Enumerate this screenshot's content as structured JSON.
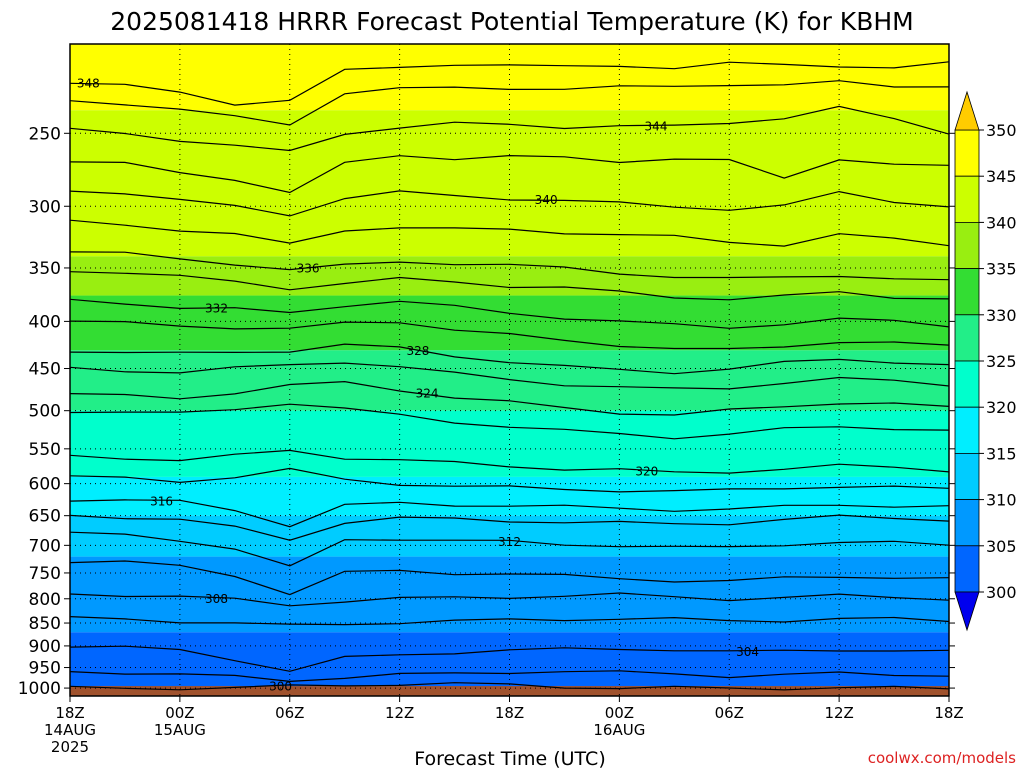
{
  "chart_data": {
    "type": "filled-contour",
    "title": "2025081418 HRRR Forecast Potential Temperature (K) for KBHM",
    "xlabel": "Forecast Time (UTC)",
    "ylabel": "",
    "credit": "coolwx.com/models",
    "x_ticks": [
      {
        "hour": 0,
        "lines": [
          "18Z",
          "14AUG",
          "2025"
        ]
      },
      {
        "hour": 6,
        "lines": [
          "00Z",
          "15AUG"
        ]
      },
      {
        "hour": 12,
        "lines": [
          "06Z"
        ]
      },
      {
        "hour": 18,
        "lines": [
          "12Z"
        ]
      },
      {
        "hour": 24,
        "lines": [
          "18Z"
        ]
      },
      {
        "hour": 30,
        "lines": [
          "00Z",
          "16AUG"
        ]
      },
      {
        "hour": 36,
        "lines": [
          "06Z"
        ]
      },
      {
        "hour": 42,
        "lines": [
          "12Z"
        ]
      },
      {
        "hour": 48,
        "lines": [
          "18Z"
        ]
      }
    ],
    "xlim": [
      0,
      48
    ],
    "y_ticks": [
      250,
      300,
      350,
      400,
      450,
      500,
      550,
      600,
      650,
      700,
      750,
      800,
      850,
      900,
      950,
      1000
    ],
    "ylim": [
      1020,
      200
    ],
    "y_scale": "log-pressure",
    "grid": true,
    "colorbar": {
      "labels": [
        350,
        345,
        340,
        335,
        330,
        325,
        320,
        315,
        310,
        305,
        300
      ],
      "bands": [
        {
          "min": 345,
          "max": 350,
          "color": "#ffff00"
        },
        {
          "min": 340,
          "max": 345,
          "color": "#ccff00"
        },
        {
          "min": 335,
          "max": 340,
          "color": "#99ee11"
        },
        {
          "min": 330,
          "max": 335,
          "color": "#33dd33"
        },
        {
          "min": 325,
          "max": 330,
          "color": "#22ee88"
        },
        {
          "min": 320,
          "max": 325,
          "color": "#00ffcc"
        },
        {
          "min": 315,
          "max": 320,
          "color": "#00eeff"
        },
        {
          "min": 310,
          "max": 315,
          "color": "#00ccff"
        },
        {
          "min": 305,
          "max": 310,
          "color": "#0099ff"
        },
        {
          "min": 300,
          "max": 305,
          "color": "#0066ff"
        }
      ],
      "over_color": "#ffcc00",
      "under_color": "#0000ee"
    },
    "ground_color": "#a0522d",
    "bands": [
      {
        "top": 200,
        "bottom": 236,
        "color": "#ffff00"
      },
      {
        "top": 236,
        "bottom": 340,
        "color": "#ccff00"
      },
      {
        "top": 340,
        "bottom": 375,
        "color": "#99ee11"
      },
      {
        "top": 375,
        "bottom": 430,
        "color": "#33dd33"
      },
      {
        "top": 430,
        "bottom": 500,
        "color": "#22ee88"
      },
      {
        "top": 500,
        "bottom": 590,
        "color": "#00ffcc"
      },
      {
        "top": 590,
        "bottom": 650,
        "color": "#00eeff"
      },
      {
        "top": 650,
        "bottom": 720,
        "color": "#00ccff"
      },
      {
        "top": 720,
        "bottom": 870,
        "color": "#0099ff"
      },
      {
        "top": 870,
        "bottom": 1000,
        "color": "#0066ff"
      }
    ],
    "contours": [
      {
        "value": 348,
        "label": "348",
        "label_hour": 1.0,
        "pressure": [
          220,
          222,
          226,
          232,
          230,
          214,
          212,
          210,
          211,
          212,
          211,
          212,
          210,
          211,
          211,
          212,
          210
        ]
      },
      {
        "value": 346,
        "label": "",
        "pressure": [
          230,
          232,
          236,
          240,
          244,
          226,
          224,
          223,
          223,
          224,
          223,
          222,
          221,
          222,
          220,
          222,
          222
        ]
      },
      {
        "value": 344,
        "label": "344",
        "label_hour": 32.0,
        "pressure": [
          248,
          250,
          254,
          258,
          262,
          250,
          246,
          244,
          245,
          246,
          245,
          246,
          244,
          240,
          234,
          242,
          250
        ]
      },
      {
        "value": 342,
        "label": "",
        "pressure": [
          268,
          270,
          276,
          280,
          290,
          270,
          264,
          266,
          265,
          266,
          268,
          266,
          268,
          280,
          266,
          270,
          272
        ]
      },
      {
        "value": 340,
        "label": "340",
        "label_hour": 26.0,
        "pressure": [
          288,
          290,
          296,
          300,
          306,
          294,
          290,
          292,
          294,
          296,
          298,
          300,
          302,
          300,
          290,
          296,
          300
        ]
      },
      {
        "value": 338,
        "label": "",
        "pressure": [
          312,
          314,
          318,
          322,
          330,
          318,
          316,
          318,
          318,
          320,
          322,
          324,
          328,
          330,
          322,
          326,
          330
        ]
      },
      {
        "value": 336,
        "label": "336",
        "label_hour": 13.0,
        "pressure": [
          336,
          338,
          342,
          346,
          352,
          348,
          344,
          346,
          348,
          350,
          354,
          358,
          360,
          358,
          356,
          360,
          362
        ]
      },
      {
        "value": 334,
        "label": "",
        "pressure": [
          352,
          354,
          358,
          362,
          368,
          364,
          360,
          362,
          366,
          368,
          372,
          376,
          378,
          376,
          372,
          376,
          378
        ]
      },
      {
        "value": 332,
        "label": "332",
        "label_hour": 8.0,
        "pressure": [
          380,
          382,
          386,
          388,
          392,
          384,
          380,
          386,
          392,
          396,
          400,
          404,
          406,
          402,
          398,
          400,
          404
        ]
      },
      {
        "value": 330,
        "label": "",
        "pressure": [
          400,
          402,
          404,
          406,
          408,
          402,
          400,
          408,
          414,
          420,
          424,
          428,
          430,
          426,
          420,
          422,
          426
        ]
      },
      {
        "value": 328,
        "label": "328",
        "label_hour": 19.0,
        "pressure": [
          430,
          432,
          434,
          432,
          430,
          424,
          428,
          436,
          442,
          448,
          452,
          454,
          450,
          444,
          440,
          442,
          446
        ]
      },
      {
        "value": 326,
        "label": "",
        "pressure": [
          450,
          452,
          454,
          450,
          446,
          442,
          448,
          456,
          462,
          468,
          472,
          474,
          472,
          466,
          462,
          464,
          468
        ]
      },
      {
        "value": 324,
        "label": "324",
        "label_hour": 19.5,
        "pressure": [
          480,
          482,
          484,
          478,
          470,
          466,
          474,
          484,
          490,
          496,
          502,
          506,
          500,
          494,
          490,
          492,
          496
        ]
      },
      {
        "value": 322,
        "label": "",
        "pressure": [
          500,
          502,
          504,
          498,
          490,
          498,
          506,
          514,
          520,
          526,
          530,
          534,
          530,
          524,
          520,
          522,
          526
        ]
      },
      {
        "value": 320,
        "label": "320",
        "label_hour": 31.5,
        "pressure": [
          560,
          562,
          566,
          560,
          552,
          562,
          566,
          570,
          574,
          578,
          580,
          584,
          582,
          578,
          574,
          576,
          580
        ]
      },
      {
        "value": 318,
        "label": "",
        "pressure": [
          590,
          592,
          596,
          590,
          580,
          594,
          600,
          604,
          606,
          608,
          610,
          612,
          610,
          606,
          604,
          606,
          608
        ]
      },
      {
        "value": 316,
        "label": "316",
        "label_hour": 5.0,
        "pressure": [
          624,
          626,
          628,
          640,
          666,
          634,
          630,
          632,
          634,
          636,
          638,
          640,
          640,
          636,
          632,
          634,
          636
        ]
      },
      {
        "value": 314,
        "label": "",
        "pressure": [
          650,
          652,
          656,
          670,
          690,
          660,
          654,
          656,
          658,
          660,
          662,
          664,
          662,
          656,
          652,
          654,
          656
        ]
      },
      {
        "value": 312,
        "label": "312",
        "label_hour": 24.0,
        "pressure": [
          680,
          682,
          690,
          706,
          740,
          690,
          688,
          692,
          694,
          698,
          700,
          704,
          704,
          698,
          694,
          696,
          700
        ]
      },
      {
        "value": 310,
        "label": "",
        "pressure": [
          728,
          730,
          738,
          754,
          790,
          750,
          746,
          750,
          752,
          756,
          760,
          764,
          766,
          760,
          756,
          758,
          762
        ]
      },
      {
        "value": 308,
        "label": "308",
        "label_hour": 8.0,
        "pressure": [
          790,
          792,
          796,
          802,
          812,
          804,
          800,
          798,
          796,
          794,
          792,
          796,
          800,
          798,
          794,
          796,
          800
        ]
      },
      {
        "value": 306,
        "label": "",
        "pressure": [
          840,
          842,
          846,
          850,
          856,
          852,
          848,
          846,
          844,
          842,
          840,
          842,
          846,
          844,
          840,
          842,
          846
        ]
      },
      {
        "value": 304,
        "label": "304",
        "label_hour": 37.0,
        "pressure": [
          900,
          904,
          910,
          930,
          958,
          928,
          920,
          914,
          910,
          908,
          906,
          908,
          914,
          912,
          908,
          910,
          914
        ]
      },
      {
        "value": 302,
        "label": "",
        "pressure": [
          958,
          962,
          968,
          972,
          980,
          974,
          968,
          964,
          960,
          960,
          962,
          964,
          970,
          968,
          964,
          966,
          968
        ]
      },
      {
        "value": 300,
        "label": "300",
        "label_hour": 11.5,
        "pressure": [
          1000,
          1000,
          1000,
          1000,
          996,
          992,
          990,
          990,
          992,
          996,
          1000,
          1000,
          1000,
          1000,
          1000,
          1000,
          1000
        ]
      }
    ]
  }
}
